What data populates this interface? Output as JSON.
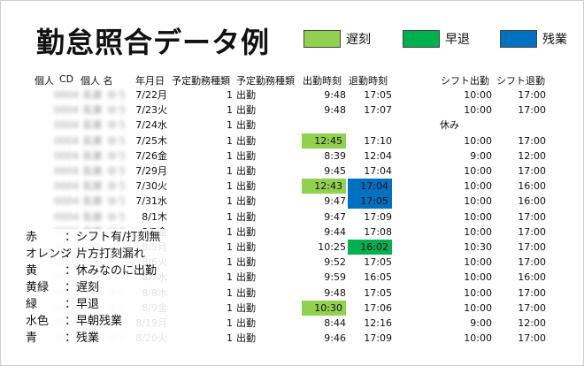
{
  "title": "勤怠照合データ例",
  "legend": [
    {
      "label": "遅刻",
      "color": "#92d050"
    },
    {
      "label": "早退",
      "color": "#00b050"
    },
    {
      "label": "残業",
      "color": "#0070c0"
    }
  ],
  "headers": {
    "id": "個人",
    "cd": "CD",
    "name": "個人 名",
    "date": "年月日",
    "type_code": "予定勤務種類",
    "type_name": "予定勤務種類",
    "clock_in": "出勤時刻",
    "clock_out": "退勤時刻",
    "shift_in": "シフト出勤",
    "shift_out": "シフト退勤"
  },
  "rows": [
    {
      "id": "0004",
      "name": "長瀬",
      "given": "ゆう",
      "date": "7/22月",
      "code": "1",
      "work": "出勤",
      "in": "9:48",
      "out": "17:05",
      "note": "",
      "sin": "10:00",
      "sout": "17:00",
      "in_hl": "",
      "out_hl": ""
    },
    {
      "id": "0004",
      "name": "長瀬",
      "given": "ゆう",
      "date": "7/23火",
      "code": "1",
      "work": "出勤",
      "in": "9:48",
      "out": "17:07",
      "note": "",
      "sin": "10:00",
      "sout": "17:00",
      "in_hl": "",
      "out_hl": ""
    },
    {
      "id": "0004",
      "name": "長瀬",
      "given": "ゆう",
      "date": "7/24水",
      "code": "1",
      "work": "出勤",
      "in": "",
      "out": "",
      "note": "休み",
      "sin": "",
      "sout": "",
      "in_hl": "",
      "out_hl": ""
    },
    {
      "id": "0004",
      "name": "長瀬",
      "given": "ゆう",
      "date": "7/25木",
      "code": "1",
      "work": "出勤",
      "in": "12:45",
      "out": "17:10",
      "note": "",
      "sin": "10:00",
      "sout": "17:00",
      "in_hl": "late",
      "out_hl": ""
    },
    {
      "id": "0004",
      "name": "長瀬",
      "given": "ゆう",
      "date": "7/26金",
      "code": "1",
      "work": "出勤",
      "in": "8:39",
      "out": "12:04",
      "note": "",
      "sin": "9:00",
      "sout": "12:00",
      "in_hl": "",
      "out_hl": ""
    },
    {
      "id": "0004",
      "name": "長瀬",
      "given": "ゆう",
      "date": "7/29月",
      "code": "1",
      "work": "出勤",
      "in": "9:45",
      "out": "17:04",
      "note": "",
      "sin": "10:00",
      "sout": "17:00",
      "in_hl": "",
      "out_hl": ""
    },
    {
      "id": "0004",
      "name": "長瀬",
      "given": "ゆう",
      "date": "7/30火",
      "code": "1",
      "work": "出勤",
      "in": "12:43",
      "out": "17:04",
      "note": "",
      "sin": "10:00",
      "sout": "16:00",
      "in_hl": "late",
      "out_hl": "overtime"
    },
    {
      "id": "0004",
      "name": "長瀬",
      "given": "ゆう",
      "date": "7/31水",
      "code": "1",
      "work": "出勤",
      "in": "9:47",
      "out": "17:05",
      "note": "",
      "sin": "10:00",
      "sout": "16:00",
      "in_hl": "",
      "out_hl": "overtime"
    },
    {
      "id": "0004",
      "name": "長瀬",
      "given": "ゆう",
      "date": "8/1木",
      "code": "1",
      "work": "出勤",
      "in": "9:47",
      "out": "17:09",
      "note": "",
      "sin": "10:00",
      "sout": "17:00",
      "in_hl": "",
      "out_hl": ""
    },
    {
      "id": "0004",
      "name": "長瀬",
      "given": "ゆう",
      "date": "8/2金",
      "code": "1",
      "work": "出勤",
      "in": "9:44",
      "out": "17:08",
      "note": "",
      "sin": "10:00",
      "sout": "17:00",
      "in_hl": "",
      "out_hl": ""
    },
    {
      "id": "0004",
      "name": "長瀬",
      "given": "ゆう",
      "date": "8/5月",
      "code": "1",
      "work": "出勤",
      "in": "10:25",
      "out": "16:02",
      "note": "",
      "sin": "10:30",
      "sout": "17:00",
      "in_hl": "",
      "out_hl": "early"
    },
    {
      "id": "0004",
      "name": "長瀬",
      "given": "ゆう",
      "date": "8/6火",
      "code": "1",
      "work": "出勤",
      "in": "9:52",
      "out": "17:05",
      "note": "",
      "sin": "10:00",
      "sout": "17:00",
      "in_hl": "",
      "out_hl": ""
    },
    {
      "id": "0004",
      "name": "長瀬",
      "given": "ゆう",
      "date": "8/7水",
      "code": "1",
      "work": "出勤",
      "in": "9:59",
      "out": "16:05",
      "note": "",
      "sin": "10:00",
      "sout": "16:00",
      "in_hl": "",
      "out_hl": ""
    },
    {
      "id": "0004",
      "name": "長瀬",
      "given": "ゆう",
      "date": "8/8木",
      "code": "1",
      "work": "出勤",
      "in": "9:48",
      "out": "17:05",
      "note": "",
      "sin": "10:00",
      "sout": "17:00",
      "in_hl": "",
      "out_hl": ""
    },
    {
      "id": "0004",
      "name": "長瀬",
      "given": "ゆう",
      "date": "8/9金",
      "code": "1",
      "work": "出勤",
      "in": "10:30",
      "out": "17:06",
      "note": "",
      "sin": "10:00",
      "sout": "17:00",
      "in_hl": "late",
      "out_hl": ""
    },
    {
      "id": "0004",
      "name": "長瀬",
      "given": "ゆう",
      "date": "8/19月",
      "code": "1",
      "work": "出勤",
      "in": "8:44",
      "out": "12:16",
      "note": "",
      "sin": "9:00",
      "sout": "12:00",
      "in_hl": "",
      "out_hl": ""
    },
    {
      "id": "0004",
      "name": "長瀬",
      "given": "ゆう",
      "date": "8/20火",
      "code": "1",
      "work": "出勤",
      "in": "9:46",
      "out": "17:09",
      "note": "",
      "sin": "10:00",
      "sout": "17:00",
      "in_hl": "",
      "out_hl": ""
    }
  ],
  "highlight_colors": {
    "late": "#92d050",
    "early": "#00b050",
    "overtime": "#0070c0"
  },
  "notes": [
    {
      "color": "赤",
      "desc": "：シフト有/打刻無"
    },
    {
      "color": "オレンジ",
      "desc": "：片方打刻漏れ"
    },
    {
      "color": "黄",
      "desc": "：休みなのに出勤"
    },
    {
      "color": "黄緑",
      "desc": "：遅刻"
    },
    {
      "color": "緑",
      "desc": "：早退"
    },
    {
      "color": "水色",
      "desc": "：早朝残業"
    },
    {
      "color": "青",
      "desc": "：残業"
    }
  ]
}
